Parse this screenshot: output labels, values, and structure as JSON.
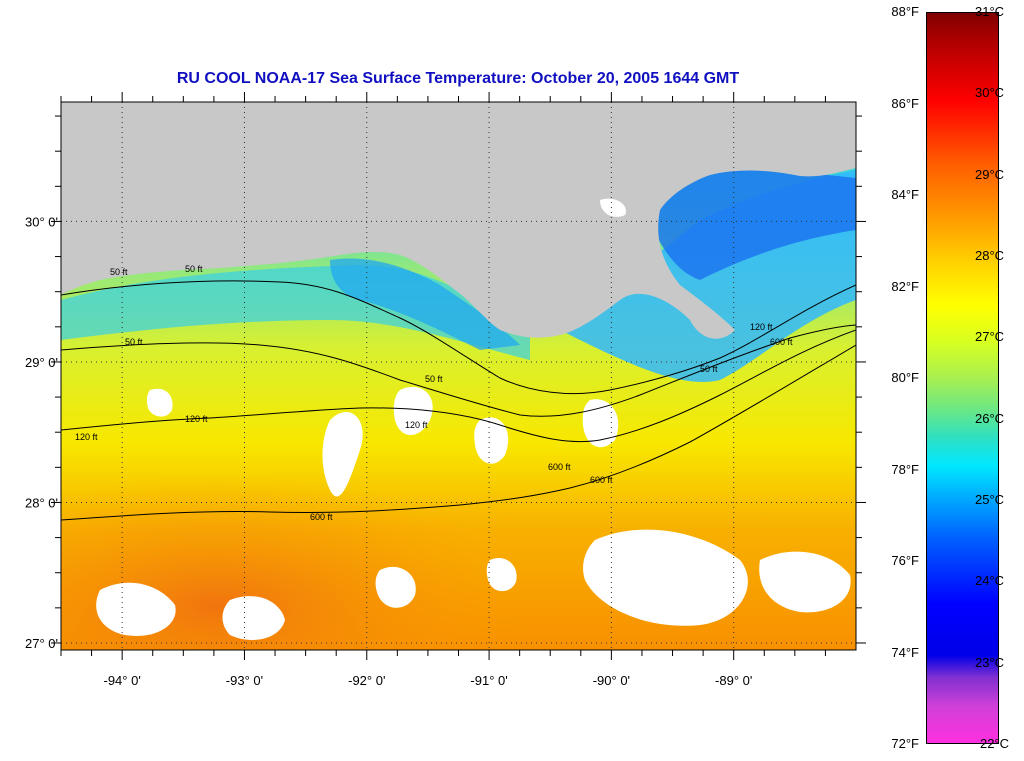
{
  "title": "RU COOL  NOAA-17  Sea Surface Temperature:  October 20, 2005 1644 GMT",
  "map": {
    "lon_range": [
      -94.5,
      -88.0
    ],
    "lat_range": [
      26.95,
      30.85
    ],
    "land_color": "#c8c8c8",
    "cloud_color": "#ffffff",
    "lon_ticks": [
      {
        "value": -94,
        "label": "-94° 0'"
      },
      {
        "value": -93,
        "label": "-93° 0'"
      },
      {
        "value": -92,
        "label": "-92° 0'"
      },
      {
        "value": -91,
        "label": "-91° 0'"
      },
      {
        "value": -90,
        "label": "-90° 0'"
      },
      {
        "value": -89,
        "label": "-89° 0'"
      }
    ],
    "lat_ticks": [
      {
        "value": 30,
        "label": "30° 0'"
      },
      {
        "value": 29,
        "label": "29° 0'"
      },
      {
        "value": 28,
        "label": "28° 0'"
      },
      {
        "value": 27,
        "label": "27° 0'"
      }
    ],
    "contours": [
      {
        "depth": "50 ft",
        "labels": [
          "50 ft",
          "50 ft",
          "50 ft",
          "50 ft",
          "50 ft"
        ]
      },
      {
        "depth": "120 ft",
        "labels": [
          "120 ft",
          "120 ft",
          "120 ft",
          "120 ft"
        ]
      },
      {
        "depth": "600 ft",
        "labels": [
          "600 ft",
          "600 ft",
          "600 ft",
          "600 ft"
        ]
      }
    ]
  },
  "colorbar": {
    "fahrenheit": [
      "88°F",
      "86°F",
      "84°F",
      "82°F",
      "80°F",
      "78°F",
      "76°F",
      "74°F",
      "72°F"
    ],
    "celsius": [
      "31°C",
      "30°C",
      "29°C",
      "28°C",
      "27°C",
      "26°C",
      "25°C",
      "24°C",
      "23°C",
      "22°C"
    ],
    "range_c": [
      22,
      31
    ],
    "range_f": [
      72,
      88
    ]
  }
}
